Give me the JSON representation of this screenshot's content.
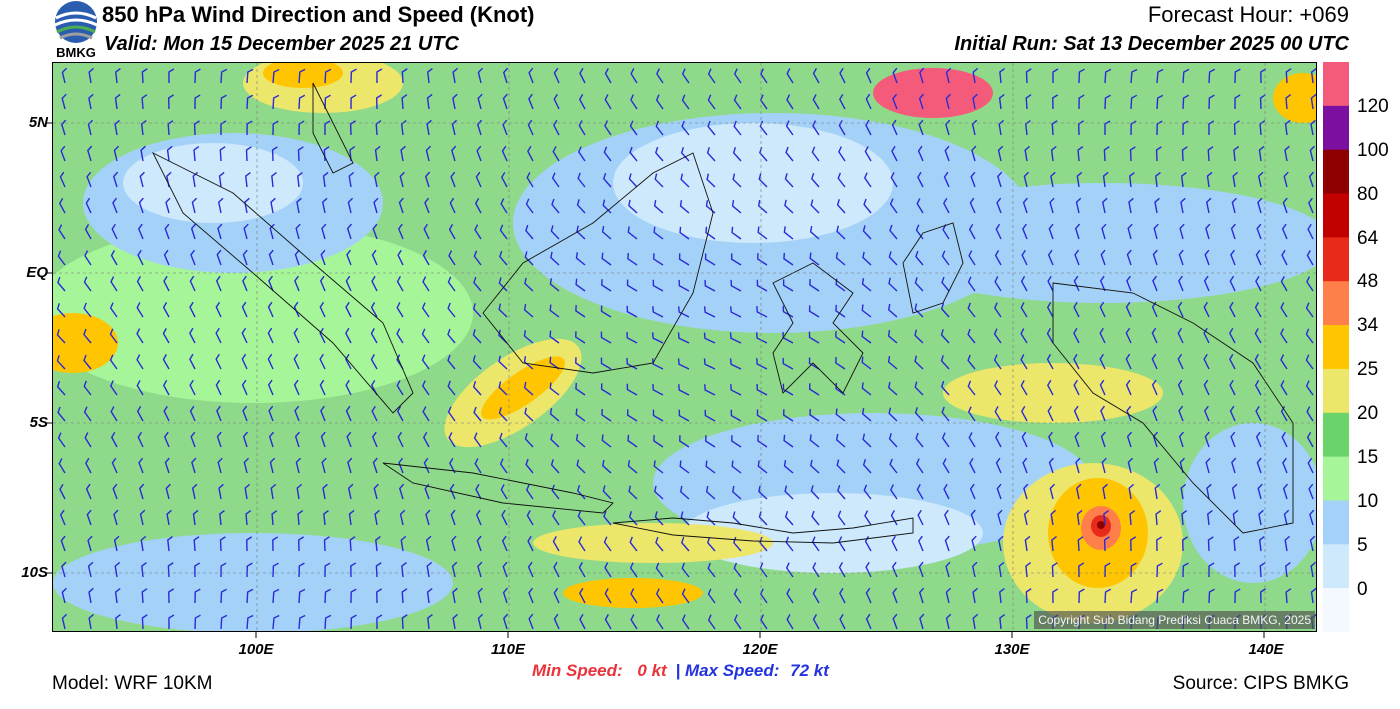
{
  "header": {
    "logo_text": "BMKG",
    "title": "850 hPa Wind Direction and Speed (Knot)",
    "valid": "Valid: Mon 15 December 2025 21 UTC",
    "forecast_hour": "Forecast Hour: +069",
    "initial_run": "Initial Run: Sat 13 December 2025 00 UTC"
  },
  "map": {
    "lat_labels": [
      "5N",
      "EQ",
      "5S",
      "10S"
    ],
    "lon_labels": [
      "100E",
      "110E",
      "120E",
      "130E",
      "140E"
    ],
    "copyright": "Copyright Sub Bidang Prediksi Cuaca BMKG, 2025"
  },
  "colorbar": {
    "labels": [
      "120",
      "100",
      "80",
      "64",
      "48",
      "34",
      "25",
      "20",
      "15",
      "10",
      "5",
      "0"
    ],
    "colors": [
      "#f45b7a",
      "#7a0fa0",
      "#8e0000",
      "#c20000",
      "#e82a1a",
      "#ff7f4a",
      "#ffc500",
      "#ece66b",
      "#6ad46a",
      "#a6f598",
      "#a4d1f7",
      "#cde9fb",
      "#f4f9ff"
    ]
  },
  "footer": {
    "model": "Model: WRF 10KM",
    "min_speed_label": "Min Speed:",
    "min_speed_value": "0 kt",
    "separator": "|",
    "max_speed_label": "Max Speed:",
    "max_speed_value": "72 kt",
    "source": "Source: CIPS BMKG"
  }
}
